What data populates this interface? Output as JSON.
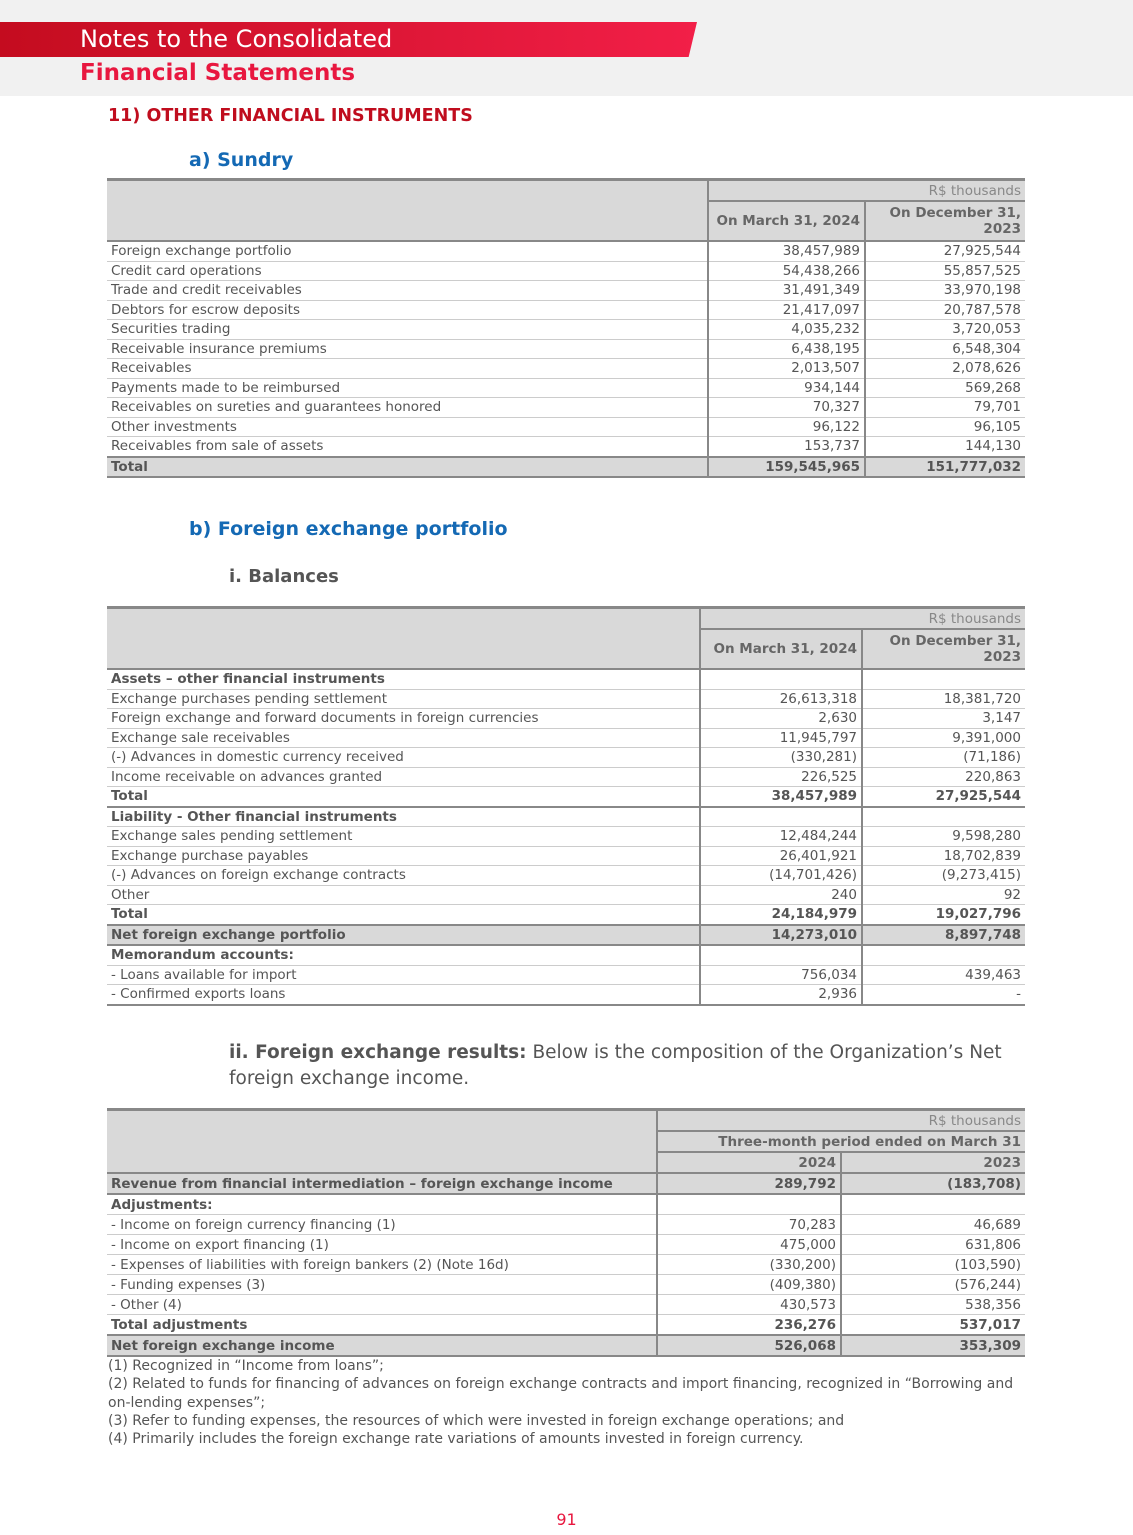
{
  "header": {
    "title_line1": "Notes to the Consolidated",
    "title_line2": "Financial Statements",
    "colors": {
      "band": "#e8173f",
      "section": "#c00d1e",
      "subsection": "#1469b4"
    }
  },
  "section_title": "11) OTHER FINANCIAL INSTRUMENTS",
  "sundry": {
    "title": "a)  Sundry",
    "unit": "R$ thousands",
    "columns": [
      "On March 31, 2024",
      "On December 31, 2023"
    ],
    "rows": [
      {
        "label": "Foreign exchange portfolio",
        "v1": "38,457,989",
        "v2": "27,925,544"
      },
      {
        "label": "Credit card operations",
        "v1": "54,438,266",
        "v2": "55,857,525"
      },
      {
        "label": "Trade and credit receivables",
        "v1": "31,491,349",
        "v2": "33,970,198"
      },
      {
        "label": "Debtors for escrow deposits",
        "v1": "21,417,097",
        "v2": "20,787,578"
      },
      {
        "label": "Securities trading",
        "v1": "4,035,232",
        "v2": "3,720,053"
      },
      {
        "label": "Receivable insurance premiums",
        "v1": "6,438,195",
        "v2": "6,548,304"
      },
      {
        "label": "Receivables",
        "v1": "2,013,507",
        "v2": "2,078,626"
      },
      {
        "label": "Payments made to be reimbursed",
        "v1": "934,144",
        "v2": "569,268"
      },
      {
        "label": "Receivables on sureties and guarantees honored",
        "v1": "70,327",
        "v2": "79,701"
      },
      {
        "label": "Other investments",
        "v1": "96,122",
        "v2": "96,105"
      },
      {
        "label": "Receivables from sale of assets",
        "v1": "153,737",
        "v2": "144,130"
      },
      {
        "label": "Total",
        "v1": "159,545,965",
        "v2": "151,777,032",
        "style": "bold gray thick last"
      }
    ]
  },
  "fx": {
    "title": "b)  Foreign exchange portfolio",
    "balances_title": "i. Balances",
    "unit": "R$ thousands",
    "columns": [
      "On March 31, 2024",
      "On December 31, 2023"
    ],
    "rows": [
      {
        "label": "Assets – other financial instruments",
        "v1": "",
        "v2": "",
        "style": "bold"
      },
      {
        "label": "Exchange purchases pending settlement",
        "v1": "26,613,318",
        "v2": "18,381,720"
      },
      {
        "label": "Foreign exchange and forward documents in foreign currencies",
        "v1": "2,630",
        "v2": "3,147"
      },
      {
        "label": "Exchange sale receivables",
        "v1": "11,945,797",
        "v2": "9,391,000"
      },
      {
        "label": "(-) Advances in domestic currency received",
        "v1": "(330,281)",
        "v2": "(71,186)"
      },
      {
        "label": "Income receivable on advances granted",
        "v1": "226,525",
        "v2": "220,863"
      },
      {
        "label": "Total",
        "v1": "38,457,989",
        "v2": "27,925,544",
        "style": "bold"
      },
      {
        "label": "Liability - Other financial instruments",
        "v1": "",
        "v2": "",
        "style": "bold thick"
      },
      {
        "label": "Exchange sales pending settlement",
        "v1": "12,484,244",
        "v2": "9,598,280"
      },
      {
        "label": "Exchange purchase payables",
        "v1": "26,401,921",
        "v2": "18,702,839"
      },
      {
        "label": "(-) Advances on foreign exchange contracts",
        "v1": "(14,701,426)",
        "v2": "(9,273,415)"
      },
      {
        "label": "Other",
        "v1": "240",
        "v2": "92"
      },
      {
        "label": "Total",
        "v1": "24,184,979",
        "v2": "19,027,796",
        "style": "bold"
      },
      {
        "label": "Net foreign exchange portfolio",
        "v1": "14,273,010",
        "v2": "8,897,748",
        "style": "bold gray thick"
      },
      {
        "label": "Memorandum accounts:",
        "v1": "",
        "v2": "",
        "style": "bold thick"
      },
      {
        "label": " -  Loans available for import",
        "v1": "756,034",
        "v2": "439,463"
      },
      {
        "label": "- Confirmed exports loans",
        "v1": "2,936",
        "v2": "-",
        "style": "last"
      }
    ]
  },
  "results": {
    "heading_bold": "ii. Foreign exchange results:",
    "heading_text": " Below is the composition of the Organization’s Net foreign exchange income.",
    "unit": "R$ thousands",
    "period": "Three-month period ended on March 31",
    "columns": [
      "2024",
      "2023"
    ],
    "rows": [
      {
        "label": "Revenue from financial intermediation – foreign exchange income",
        "v1": "289,792",
        "v2": "(183,708)",
        "style": "bold gray"
      },
      {
        "label": "Adjustments:",
        "v1": "",
        "v2": "",
        "style": "bold thick"
      },
      {
        "label": "- Income on foreign currency financing (1)",
        "v1": "70,283",
        "v2": "46,689"
      },
      {
        "label": "- Income on export financing (1)",
        "v1": "475,000",
        "v2": "631,806"
      },
      {
        "label": "- Expenses of liabilities with foreign bankers (2) (Note 16d)",
        "v1": "(330,200)",
        "v2": "(103,590)"
      },
      {
        "label": "- Funding expenses (3)",
        "v1": "(409,380)",
        "v2": "(576,244)"
      },
      {
        "label": "- Other (4)",
        "v1": "430,573",
        "v2": "538,356"
      },
      {
        "label": "Total adjustments",
        "v1": "236,276",
        "v2": "537,017",
        "style": "bold"
      },
      {
        "label": "Net foreign exchange income",
        "v1": "526,068",
        "v2": "353,309",
        "style": "bold gray thick last"
      }
    ],
    "footnotes": [
      "(1) Recognized in “Income from loans”;",
      "(2) Related to funds for financing of advances on foreign exchange contracts and import financing, recognized in “Borrowing and on-lending expenses”;",
      "(3) Refer to funding expenses, the resources of which were invested in foreign exchange operations; and",
      "(4) Primarily includes the foreign exchange rate variations of amounts invested in foreign currency."
    ]
  },
  "page_number": "91"
}
